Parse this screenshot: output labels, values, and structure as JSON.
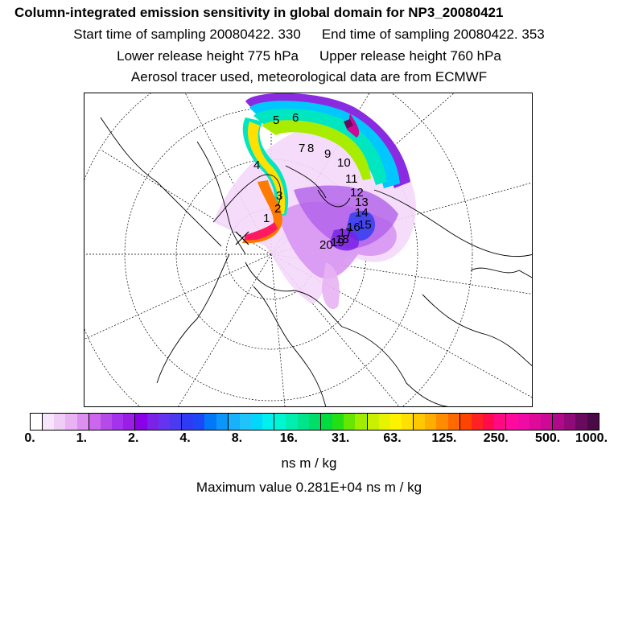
{
  "title": "Column-integrated emission sensitivity in global domain for NP3_20080421",
  "sampling": {
    "start": "Start time of sampling 20080422.   330",
    "end": "End time of sampling 20080422.   353"
  },
  "release": {
    "lower": "Lower release height  775 hPa",
    "upper": "Upper release height  760 hPa"
  },
  "note": "Aerosol tracer used, meteorological data are from ECMWF",
  "map": {
    "trajectory_labels": [
      "1",
      "2",
      "3",
      "4",
      "5",
      "6",
      "7",
      "8",
      "9",
      "10",
      "11",
      "12",
      "13",
      "14",
      "15",
      "16",
      "17",
      "18",
      "19",
      "20"
    ]
  },
  "colorbar": {
    "ticks": [
      "0.",
      "1.",
      "2.",
      "4.",
      "8.",
      "16.",
      "31.",
      "63.",
      "125.",
      "250.",
      "500.",
      "1000."
    ],
    "colors": [
      "#ffffff",
      "#f7e6fb",
      "#f0cdf7",
      "#e8b2f3",
      "#dc8ff0",
      "#cc66ee",
      "#b54ae8",
      "#a533ee",
      "#9a1de8",
      "#8a00e8",
      "#7a22e6",
      "#6633ee",
      "#4a3af0",
      "#2d3cf4",
      "#1d48f6",
      "#0078f8",
      "#0a96fb",
      "#17b2fb",
      "#1fc4fa",
      "#00d7fa",
      "#00f0f0",
      "#00f5d2",
      "#00eeb0",
      "#00e48c",
      "#00de68",
      "#00dc40",
      "#22e014",
      "#66e600",
      "#a2ec00",
      "#c8f000",
      "#e6f400",
      "#fff200",
      "#ffe000",
      "#ffc800",
      "#ffae00",
      "#ff8c00",
      "#ff6a00",
      "#ff4400",
      "#ff2222",
      "#ff0a4a",
      "#ff0a82",
      "#ff0a9c",
      "#f00aa6",
      "#e00a9a",
      "#cc0a96",
      "#b00a8a",
      "#900a7a",
      "#6a0a5e",
      "#4a0a46"
    ],
    "units": "ns m / kg",
    "max_value": "Maximum value  0.281E+04 ns m / kg"
  }
}
